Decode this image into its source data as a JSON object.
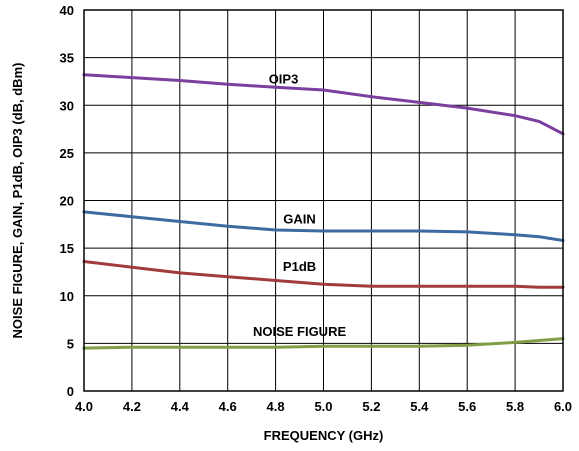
{
  "chart_data": {
    "type": "line",
    "title": "",
    "xlabel": "FREQUENCY (GHz)",
    "ylabel": "NOISE FIGURE, GAIN, P1dB, OIP3 (dB, dBm)",
    "xlim": [
      4.0,
      6.0
    ],
    "ylim": [
      0,
      40
    ],
    "x_ticks": [
      "4.0",
      "4.2",
      "4.4",
      "4.6",
      "4.8",
      "5.0",
      "5.2",
      "5.4",
      "5.6",
      "5.8",
      "6.0"
    ],
    "y_ticks": [
      "0",
      "5",
      "10",
      "15",
      "20",
      "25",
      "30",
      "35",
      "40"
    ],
    "grid": true,
    "x": [
      4.0,
      4.2,
      4.4,
      4.6,
      4.8,
      5.0,
      5.2,
      5.4,
      5.6,
      5.8,
      5.9,
      6.0
    ],
    "series": [
      {
        "name": "OIP3",
        "color": "#7b3f9e",
        "values": [
          33.2,
          32.9,
          32.6,
          32.2,
          31.9,
          31.6,
          30.9,
          30.3,
          29.7,
          28.9,
          28.3,
          27.0
        ]
      },
      {
        "name": "GAIN",
        "color": "#3d6aa0",
        "values": [
          18.8,
          18.3,
          17.8,
          17.3,
          16.9,
          16.8,
          16.8,
          16.8,
          16.7,
          16.4,
          16.2,
          15.8
        ]
      },
      {
        "name": "P1dB",
        "color": "#a23b3b",
        "values": [
          13.6,
          13.0,
          12.4,
          12.0,
          11.6,
          11.2,
          11.0,
          11.0,
          11.0,
          11.0,
          10.9,
          10.9
        ]
      },
      {
        "name": "NOISE FIGURE",
        "color": "#7f9e45",
        "values": [
          4.5,
          4.6,
          4.6,
          4.6,
          4.6,
          4.7,
          4.7,
          4.7,
          4.8,
          5.1,
          5.3,
          5.5
        ]
      }
    ]
  }
}
